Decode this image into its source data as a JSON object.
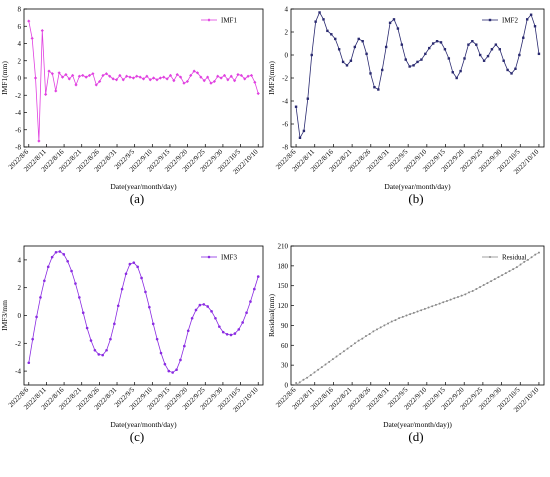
{
  "chart_data": [
    {
      "type": "line",
      "panel": "a",
      "caption": "(a)",
      "color": "#e040e0",
      "marker": "diamond",
      "series": [
        {
          "name": "IMF1",
          "values": [
            6.6,
            4.6,
            0.0,
            -7.3,
            5.5,
            -1.9,
            0.8,
            0.5,
            -1.5,
            0.6,
            0.1,
            0.4,
            -0.1,
            0.3,
            -0.8,
            0.2,
            0.3,
            0.1,
            0.3,
            0.5,
            -0.8,
            -0.4,
            0.3,
            0.5,
            0.2,
            -0.1,
            -0.2,
            0.3,
            -0.2,
            0.2,
            0.1,
            0.0,
            0.2,
            0.1,
            -0.1,
            0.2,
            -0.2,
            0.0,
            -0.2,
            0.0,
            0.1,
            -0.1,
            0.3,
            -0.3,
            0.4,
            0.1,
            -0.6,
            -0.4,
            0.3,
            0.8,
            0.6,
            0.1,
            -0.3,
            0.1,
            -0.6,
            -0.4,
            0.2,
            0.0,
            0.3,
            -0.2,
            0.2,
            -0.3,
            0.4,
            0.3,
            -0.1,
            0.2,
            0.3,
            -0.5,
            -1.8
          ]
        }
      ],
      "xticks": [
        "2022/8/6",
        "2022/8/11",
        "2022/8/16",
        "2022/8/21",
        "2022/8/26",
        "2022/8/31",
        "2022/9/5",
        "2022/9/10",
        "2022/9/15",
        "2022/9/20",
        "2022/9/25",
        "2022/9/30",
        "2022/10/5",
        "2022/10/10"
      ],
      "xlabel": "Date(year/month/day)",
      "ylabel": "IMF1(mm)",
      "ylim": [
        -8,
        8
      ],
      "yticks": [
        -8,
        -6,
        -4,
        -2,
        0,
        2,
        4,
        6,
        8
      ],
      "legend": "top-right"
    },
    {
      "type": "line",
      "panel": "b",
      "caption": "(b)",
      "color": "#2a2a70",
      "marker": "square",
      "series": [
        {
          "name": "IMF2",
          "values": [
            -4.5,
            -7.2,
            -6.6,
            -3.8,
            0.0,
            2.9,
            3.7,
            3.1,
            2.1,
            1.8,
            1.4,
            0.5,
            -0.6,
            -0.9,
            -0.5,
            0.7,
            1.4,
            1.2,
            0.1,
            -1.6,
            -2.8,
            -3.0,
            -1.3,
            0.7,
            2.8,
            3.1,
            2.3,
            0.9,
            -0.4,
            -1.0,
            -0.9,
            -0.6,
            -0.4,
            0.1,
            0.6,
            1.0,
            1.2,
            1.1,
            0.5,
            -0.3,
            -1.5,
            -2.0,
            -1.4,
            -0.3,
            0.9,
            1.2,
            0.9,
            0.0,
            -0.5,
            -0.1,
            0.5,
            0.9,
            0.5,
            -0.5,
            -1.3,
            -1.6,
            -1.2,
            0.0,
            1.5,
            3.1,
            3.5,
            2.5,
            0.1
          ]
        }
      ],
      "xticks": [
        "2022/8/6",
        "2022/8/11",
        "2022/8/16",
        "2022/8/21",
        "2022/8/26",
        "2022/8/31",
        "2022/9/5",
        "2022/9/10",
        "2022/9/15",
        "2022/9/20",
        "2022/9/25",
        "2022/9/30",
        "2022/10/5",
        "2022/10/10"
      ],
      "xlabel": "Date(year/month/day)",
      "ylabel": "IMF2(mm)",
      "ylim": [
        -8,
        4
      ],
      "yticks": [
        -8,
        -6,
        -4,
        -2,
        0,
        2,
        4
      ],
      "legend": "top-right"
    },
    {
      "type": "line",
      "panel": "c",
      "caption": "(c)",
      "color": "#8a2be2",
      "marker": "circle",
      "series": [
        {
          "name": "IMF3",
          "values": [
            -3.4,
            -1.7,
            -0.1,
            1.3,
            2.5,
            3.5,
            4.2,
            4.55,
            4.6,
            4.4,
            3.9,
            3.2,
            2.3,
            1.3,
            0.2,
            -0.9,
            -1.8,
            -2.5,
            -2.8,
            -2.85,
            -2.5,
            -1.7,
            -0.6,
            0.7,
            1.9,
            3.0,
            3.7,
            3.8,
            3.5,
            2.7,
            1.7,
            0.6,
            -0.6,
            -1.7,
            -2.7,
            -3.5,
            -4.0,
            -4.1,
            -3.9,
            -3.2,
            -2.2,
            -1.1,
            -0.2,
            0.4,
            0.75,
            0.8,
            0.65,
            0.3,
            -0.2,
            -0.8,
            -1.2,
            -1.35,
            -1.4,
            -1.3,
            -1.0,
            -0.5,
            0.2,
            1.0,
            1.9,
            2.8
          ]
        }
      ],
      "xticks": [
        "2022/8/6",
        "2022/8/11",
        "2022/8/16",
        "2022/8/21",
        "2022/8/26",
        "2022/8/31",
        "2022/9/5",
        "2022/9/10",
        "2022/9/15",
        "2022/9/20",
        "2022/9/25",
        "2022/9/30",
        "2022/10/5",
        "2022/10/10"
      ],
      "xlabel": "Date(year/month/day)",
      "ylabel": "IMF3/mm",
      "ylim": [
        -5,
        5
      ],
      "yticks": [
        -4,
        -2,
        0,
        2,
        4
      ],
      "legend": "top-right"
    },
    {
      "type": "line",
      "panel": "d",
      "caption": "(d)",
      "color": "#888888",
      "marker": "circle",
      "series": [
        {
          "name": "Residual",
          "values": [
            0,
            4,
            8,
            11,
            15,
            19,
            23,
            27,
            31,
            35,
            39,
            43,
            47,
            51,
            55,
            59,
            63,
            67,
            70,
            74,
            77,
            81,
            84,
            87,
            90,
            93,
            96,
            98,
            101,
            103,
            105,
            107,
            109,
            111,
            113,
            115,
            117,
            119,
            121,
            123,
            125,
            127,
            129,
            131,
            133,
            135,
            137,
            140,
            142,
            145,
            148,
            151,
            154,
            157,
            160,
            163,
            166,
            169,
            172,
            175,
            178,
            182,
            186,
            189,
            193,
            197,
            200
          ]
        }
      ],
      "xticks": [
        "2022/8/6",
        "2022/8/11",
        "2022/8/16",
        "2022/8/21",
        "2022/8/26",
        "2022/8/31",
        "2022/9/5",
        "2022/9/10",
        "2022/9/15",
        "2022/9/20",
        "2022/9/25",
        "2022/9/30",
        "2022/10/5",
        "2022/10/10"
      ],
      "xlabel": "Date(year/month/day))",
      "ylabel": "Residual(mm)",
      "ylim": [
        0,
        210
      ],
      "yticks": [
        0,
        30,
        60,
        90,
        120,
        150,
        180,
        210
      ],
      "legend": "top-right"
    }
  ]
}
